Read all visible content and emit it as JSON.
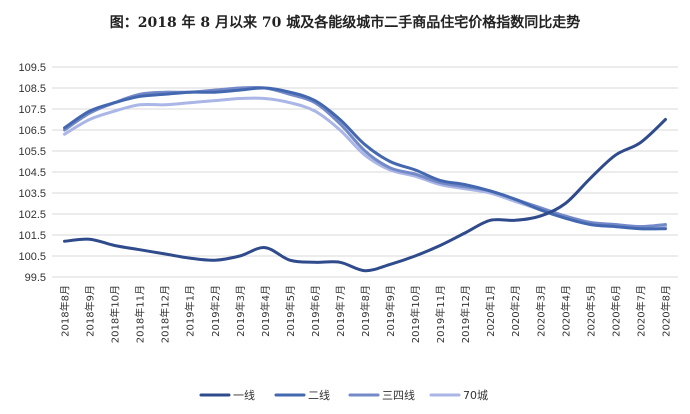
{
  "chart_data": {
    "type": "line",
    "title": "图：2018 年 8 月以来 70 城及各能级城市二手商品住宅价格指数同比走势",
    "xlabel": "",
    "ylabel": "",
    "ylim": [
      99.5,
      109.5
    ],
    "yticks": [
      "99.5",
      "100.5",
      "101.5",
      "102.5",
      "103.5",
      "104.5",
      "105.5",
      "106.5",
      "107.5",
      "108.5",
      "109.5"
    ],
    "grid": true,
    "legend_position": "bottom-center",
    "categories": [
      "2018年8月",
      "2018年9月",
      "2018年10月",
      "2018年11月",
      "2018年12月",
      "2019年1月",
      "2019年2月",
      "2019年3月",
      "2019年4月",
      "2019年5月",
      "2019年6月",
      "2019年7月",
      "2019年8月",
      "2019年9月",
      "2019年10月",
      "2019年11月",
      "2019年12月",
      "2020年1月",
      "2020年2月",
      "2020年3月",
      "2020年4月",
      "2020年5月",
      "2020年6月",
      "2020年7月",
      "2020年8月"
    ],
    "series": [
      {
        "name": "一线",
        "color": "#2f4b8c",
        "values": [
          101.2,
          101.3,
          101.0,
          100.8,
          100.6,
          100.4,
          100.3,
          100.5,
          100.9,
          100.3,
          100.2,
          100.2,
          99.8,
          100.1,
          100.5,
          101.0,
          101.6,
          102.2,
          102.2,
          102.4,
          103.0,
          104.2,
          105.3,
          105.9,
          107.0
        ]
      },
      {
        "name": "二线",
        "color": "#4468b0",
        "values": [
          106.6,
          107.4,
          107.8,
          108.1,
          108.2,
          108.3,
          108.3,
          108.4,
          108.5,
          108.3,
          107.9,
          107.0,
          105.8,
          105.0,
          104.6,
          104.1,
          103.9,
          103.6,
          103.2,
          102.7,
          102.3,
          102.0,
          101.9,
          101.8,
          101.8
        ]
      },
      {
        "name": "三四线",
        "color": "#7489c8",
        "values": [
          106.5,
          107.3,
          107.8,
          108.2,
          108.3,
          108.3,
          108.4,
          108.5,
          108.5,
          108.2,
          107.8,
          106.8,
          105.5,
          104.7,
          104.4,
          104.0,
          103.8,
          103.6,
          103.2,
          102.8,
          102.4,
          102.1,
          102.0,
          101.9,
          102.0
        ]
      },
      {
        "name": "70城",
        "color": "#a9b6e6",
        "values": [
          106.3,
          107.0,
          107.4,
          107.7,
          107.7,
          107.8,
          107.9,
          108.0,
          108.0,
          107.8,
          107.4,
          106.5,
          105.3,
          104.6,
          104.3,
          103.9,
          103.7,
          103.5,
          103.1,
          102.7,
          102.3,
          102.0,
          101.9,
          101.9,
          101.9
        ]
      }
    ]
  }
}
